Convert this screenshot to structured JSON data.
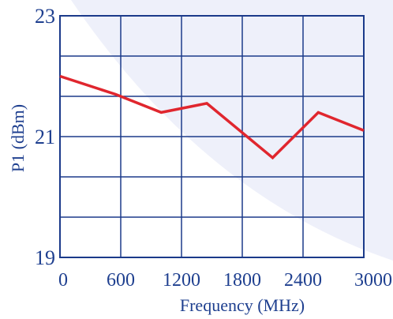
{
  "chart_data": {
    "type": "line",
    "xlabel": "Frequency (MHz)",
    "ylabel": "P1 (dBm)",
    "xlim": [
      0,
      3000
    ],
    "ylim": [
      19,
      23
    ],
    "x_ticks": [
      "0",
      "600",
      "1200",
      "1800",
      "2400",
      "3000"
    ],
    "y_ticks": [
      "19",
      "21",
      "23"
    ],
    "grid": true,
    "series": [
      {
        "x": [
          0,
          550,
          1000,
          1450,
          2100,
          2550,
          3000
        ],
        "y": [
          22.0,
          21.7,
          21.4,
          21.55,
          20.65,
          21.4,
          21.1
        ],
        "color": "#e0262e"
      }
    ],
    "colors": {
      "grid": "#1b3a8a",
      "text": "#1e3f8f",
      "background_tint": "#eef0fa"
    }
  }
}
